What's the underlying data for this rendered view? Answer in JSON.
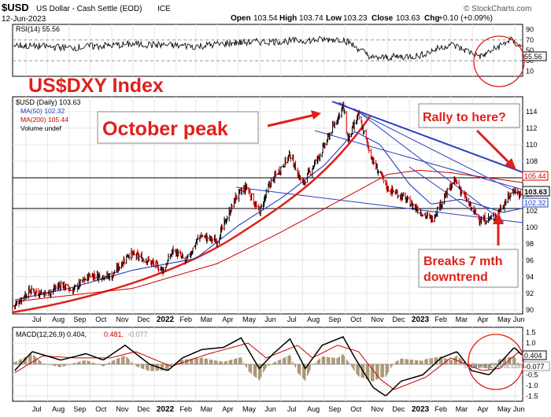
{
  "header": {
    "symbol": "$USD",
    "description": "US Dollar - Cash Settle (EOD)",
    "exchange": "ICE",
    "date": "12-Jun-2023",
    "open_label": "Open",
    "open": "103.54",
    "high_label": "High",
    "high": "103.74",
    "low_label": "Low",
    "low": "103.23",
    "close_label": "Close",
    "close": "103.63",
    "chg_label": "Chg",
    "chg": "+0.10 (+0.09%)",
    "watermark": "© StockCharts.com"
  },
  "rsi": {
    "label": "RSI(14) 55.56",
    "value_badge": "55.56",
    "ticks": [
      "90",
      "70",
      "50",
      "30",
      "10"
    ],
    "levels": [
      70,
      30
    ]
  },
  "price": {
    "legend_title": "$USD (Daily) 103.63",
    "legend_ma50": "MA(50) 102.32",
    "legend_ma200": "MA(200) 105.44",
    "legend_volume": "Volume undef",
    "badge_close": "103.63",
    "badge_ma200": "105.44",
    "badge_ma50": "102.32",
    "ticks": [
      "114",
      "112",
      "110",
      "108",
      "106",
      "104",
      "102",
      "100",
      "98",
      "96",
      "94",
      "92",
      "90"
    ]
  },
  "macd": {
    "label_main": "MACD(12,26,9) 0.404,",
    "label_signal": "0.481,",
    "label_hist": "-0.077",
    "badge_macd": "0.404",
    "badge_hist": "-0.077",
    "ticks": [
      "1.5",
      "1.0",
      "0.5",
      "0.0",
      "-0.5",
      "-1.0",
      "-1.5"
    ]
  },
  "annotations": {
    "title": "US$DXY Index",
    "october_peak": "October peak",
    "rally": "Rally to here?",
    "breaks_line1": "Breaks 7 mth",
    "breaks_line2": "downtrend"
  },
  "x_axis": {
    "labels": [
      "Jul",
      "Aug",
      "Sep",
      "Oct",
      "Nov",
      "Dec",
      "2022",
      "Feb",
      "Mar",
      "Apr",
      "May",
      "Jun",
      "Jul",
      "Aug",
      "Sep",
      "Oct",
      "Nov",
      "Dec",
      "2023",
      "Feb",
      "Mar",
      "Apr",
      "May",
      "Jun"
    ]
  },
  "colors": {
    "price_up": "#000000",
    "price_down": "#cc0000",
    "ma50": "#1f3fbf",
    "ma200": "#cc0000",
    "annotation": "#e0201a",
    "trendline": "#2a3fc0",
    "grid": "#e6e6e6"
  },
  "chart_data": {
    "type": "line",
    "title": "",
    "x_start": "2021-06-12",
    "x_end": "2023-06-12",
    "ylim": [
      89.5,
      115.8
    ],
    "price_keypoints": [
      [
        "2021-06-15",
        90.5
      ],
      [
        "2021-07-05",
        92.3
      ],
      [
        "2021-08-01",
        92.0
      ],
      [
        "2021-08-20",
        93.1
      ],
      [
        "2021-09-05",
        92.3
      ],
      [
        "2021-10-01",
        94.2
      ],
      [
        "2021-11-01",
        94.1
      ],
      [
        "2021-11-25",
        96.8
      ],
      [
        "2021-12-20",
        96.1
      ],
      [
        "2022-01-14",
        94.8
      ],
      [
        "2022-01-28",
        97.3
      ],
      [
        "2022-02-15",
        95.8
      ],
      [
        "2022-03-07",
        99.0
      ],
      [
        "2022-03-31",
        98.3
      ],
      [
        "2022-04-28",
        103.7
      ],
      [
        "2022-05-13",
        104.9
      ],
      [
        "2022-05-31",
        101.7
      ],
      [
        "2022-06-15",
        105.2
      ],
      [
        "2022-07-14",
        108.8
      ],
      [
        "2022-08-01",
        105.2
      ],
      [
        "2022-08-29",
        109.3
      ],
      [
        "2022-09-28",
        114.7
      ],
      [
        "2022-10-05",
        110.6
      ],
      [
        "2022-10-20",
        113.5
      ],
      [
        "2022-11-10",
        107.9
      ],
      [
        "2022-12-01",
        104.7
      ],
      [
        "2022-12-20",
        103.8
      ],
      [
        "2023-01-26",
        101.3
      ],
      [
        "2023-02-02",
        101.0
      ],
      [
        "2023-02-28",
        104.8
      ],
      [
        "2023-03-08",
        105.6
      ],
      [
        "2023-03-31",
        102.2
      ],
      [
        "2023-04-14",
        100.8
      ],
      [
        "2023-05-02",
        101.2
      ],
      [
        "2023-05-31",
        104.6
      ],
      [
        "2023-06-12",
        103.6
      ]
    ],
    "ma50_keypoints": [
      [
        "2021-06-15",
        91.2
      ],
      [
        "2021-09-01",
        92.6
      ],
      [
        "2021-12-01",
        94.8
      ],
      [
        "2022-03-01",
        96.2
      ],
      [
        "2022-05-01",
        100.2
      ],
      [
        "2022-07-01",
        103.5
      ],
      [
        "2022-09-01",
        107.5
      ],
      [
        "2022-10-15",
        111.6
      ],
      [
        "2022-11-20",
        110.0
      ],
      [
        "2023-01-01",
        105.2
      ],
      [
        "2023-02-01",
        102.8
      ],
      [
        "2023-03-15",
        103.4
      ],
      [
        "2023-04-15",
        102.6
      ],
      [
        "2023-05-15",
        101.8
      ],
      [
        "2023-06-12",
        102.3
      ]
    ],
    "ma200_keypoints": [
      [
        "2021-06-15",
        91.0
      ],
      [
        "2021-12-01",
        92.6
      ],
      [
        "2022-04-01",
        95.6
      ],
      [
        "2022-07-01",
        99.4
      ],
      [
        "2022-10-01",
        103.6
      ],
      [
        "2022-12-01",
        106.4
      ],
      [
        "2023-01-15",
        106.9
      ],
      [
        "2023-03-01",
        106.6
      ],
      [
        "2023-05-01",
        105.9
      ],
      [
        "2023-06-12",
        105.4
      ]
    ],
    "rsi_keypoints": [
      [
        "2021-06-15",
        60
      ],
      [
        "2021-09-01",
        55
      ],
      [
        "2021-12-01",
        62
      ],
      [
        "2022-03-01",
        58
      ],
      [
        "2022-05-01",
        65
      ],
      [
        "2022-07-15",
        68
      ],
      [
        "2022-09-28",
        72
      ],
      [
        "2022-11-10",
        35
      ],
      [
        "2023-01-15",
        40
      ],
      [
        "2023-02-28",
        62
      ],
      [
        "2023-04-14",
        38
      ],
      [
        "2023-05-25",
        70
      ],
      [
        "2023-06-12",
        55.56
      ]
    ],
    "macd_keypoints": [
      [
        "2021-06-15",
        -0.3
      ],
      [
        "2021-07-10",
        0.6
      ],
      [
        "2021-08-20",
        0.2
      ],
      [
        "2021-09-25",
        0.5
      ],
      [
        "2021-10-20",
        0.2
      ],
      [
        "2021-11-20",
        0.9
      ],
      [
        "2021-12-25",
        0.0
      ],
      [
        "2022-01-20",
        -0.3
      ],
      [
        "2022-02-10",
        0.3
      ],
      [
        "2022-03-10",
        0.7
      ],
      [
        "2022-04-10",
        0.8
      ],
      [
        "2022-05-05",
        1.25
      ],
      [
        "2022-05-31",
        -0.2
      ],
      [
        "2022-06-20",
        0.5
      ],
      [
        "2022-07-14",
        1.2
      ],
      [
        "2022-08-05",
        -0.2
      ],
      [
        "2022-08-29",
        0.9
      ],
      [
        "2022-09-28",
        1.3
      ],
      [
        "2022-10-15",
        0.3
      ],
      [
        "2022-11-10",
        -1.1
      ],
      [
        "2022-11-28",
        -1.5
      ],
      [
        "2022-12-20",
        -0.8
      ],
      [
        "2023-01-20",
        -0.5
      ],
      [
        "2023-02-15",
        0.3
      ],
      [
        "2023-03-10",
        0.6
      ],
      [
        "2023-03-31",
        -0.3
      ],
      [
        "2023-04-25",
        -0.5
      ],
      [
        "2023-05-31",
        0.8
      ],
      [
        "2023-06-12",
        0.404
      ]
    ],
    "macd_signal_keypoints": [
      [
        "2021-06-15",
        -0.4
      ],
      [
        "2021-07-25",
        0.4
      ],
      [
        "2021-09-10",
        0.3
      ],
      [
        "2021-10-30",
        0.3
      ],
      [
        "2021-12-05",
        0.6
      ],
      [
        "2022-01-25",
        -0.1
      ],
      [
        "2022-03-20",
        0.5
      ],
      [
        "2022-05-15",
        1.0
      ],
      [
        "2022-06-10",
        0.3
      ],
      [
        "2022-07-25",
        0.9
      ],
      [
        "2022-08-15",
        0.3
      ],
      [
        "2022-09-20",
        0.9
      ],
      [
        "2022-10-20",
        0.6
      ],
      [
        "2022-11-20",
        -0.7
      ],
      [
        "2022-12-10",
        -1.2
      ],
      [
        "2023-01-25",
        -0.6
      ],
      [
        "2023-03-01",
        0.3
      ],
      [
        "2023-04-15",
        -0.3
      ],
      [
        "2023-05-10",
        -0.2
      ],
      [
        "2023-06-05",
        0.55
      ],
      [
        "2023-06-12",
        0.481
      ]
    ]
  }
}
